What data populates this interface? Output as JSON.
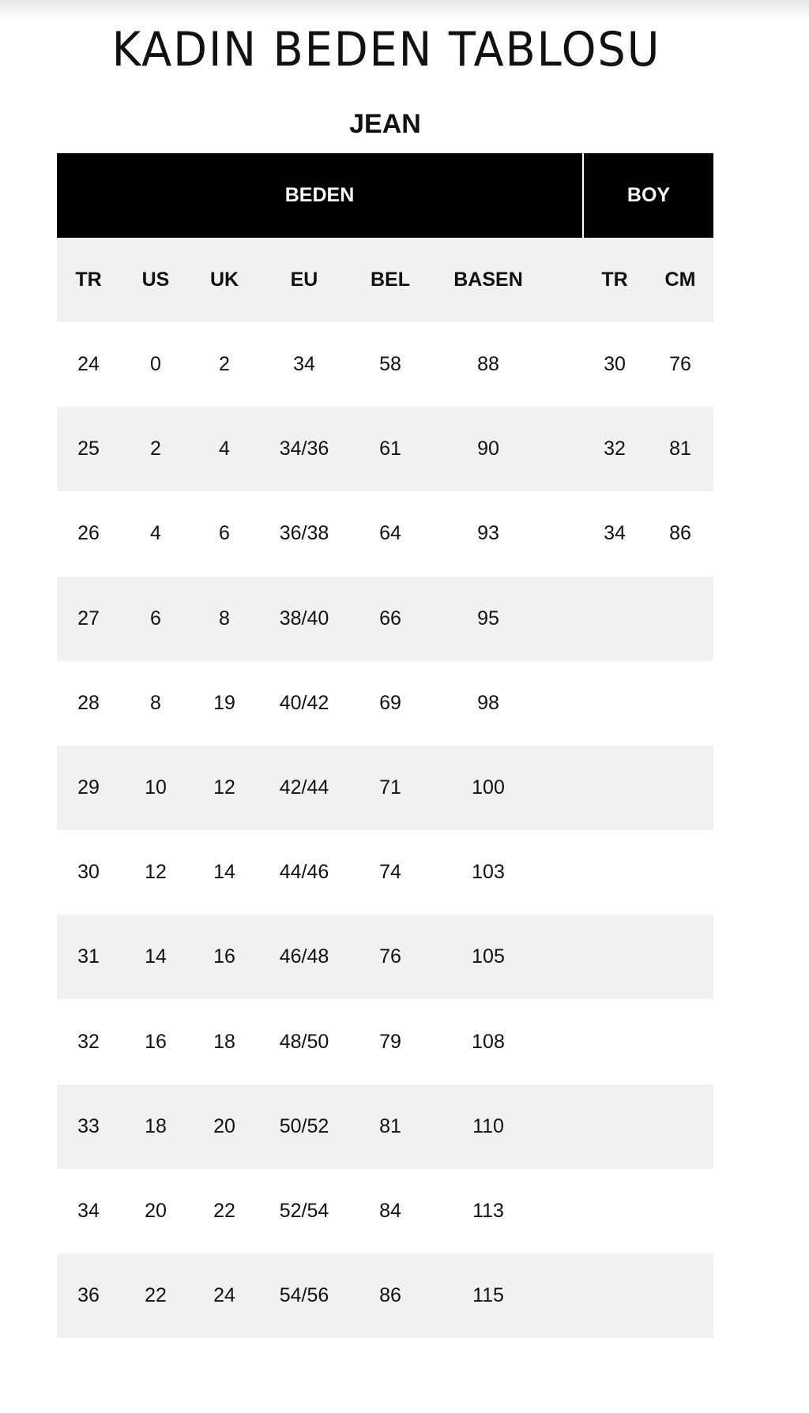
{
  "title": "KADIN BEDEN TABLOSU",
  "subtitle": "JEAN",
  "group_headers": {
    "beden": "BEDEN",
    "boy": "BOY"
  },
  "columns": [
    "TR",
    "US",
    "UK",
    "EU",
    "BEL",
    "BASEN",
    "TR",
    "CM"
  ],
  "rows": [
    [
      "24",
      "0",
      "2",
      "34",
      "58",
      "88",
      "30",
      "76"
    ],
    [
      "25",
      "2",
      "4",
      "34/36",
      "61",
      "90",
      "32",
      "81"
    ],
    [
      "26",
      "4",
      "6",
      "36/38",
      "64",
      "93",
      "34",
      "86"
    ],
    [
      "27",
      "6",
      "8",
      "38/40",
      "66",
      "95",
      "",
      ""
    ],
    [
      "28",
      "8",
      "19",
      "40/42",
      "69",
      "98",
      "",
      ""
    ],
    [
      "29",
      "10",
      "12",
      "42/44",
      "71",
      "100",
      "",
      ""
    ],
    [
      "30",
      "12",
      "14",
      "44/46",
      "74",
      "103",
      "",
      ""
    ],
    [
      "31",
      "14",
      "16",
      "46/48",
      "76",
      "105",
      "",
      ""
    ],
    [
      "32",
      "16",
      "18",
      "48/50",
      "79",
      "108",
      "",
      ""
    ],
    [
      "33",
      "18",
      "20",
      "50/52",
      "81",
      "110",
      "",
      ""
    ],
    [
      "34",
      "20",
      "22",
      "52/54",
      "84",
      "113",
      "",
      ""
    ],
    [
      "36",
      "22",
      "24",
      "54/56",
      "86",
      "115",
      "",
      ""
    ]
  ]
}
